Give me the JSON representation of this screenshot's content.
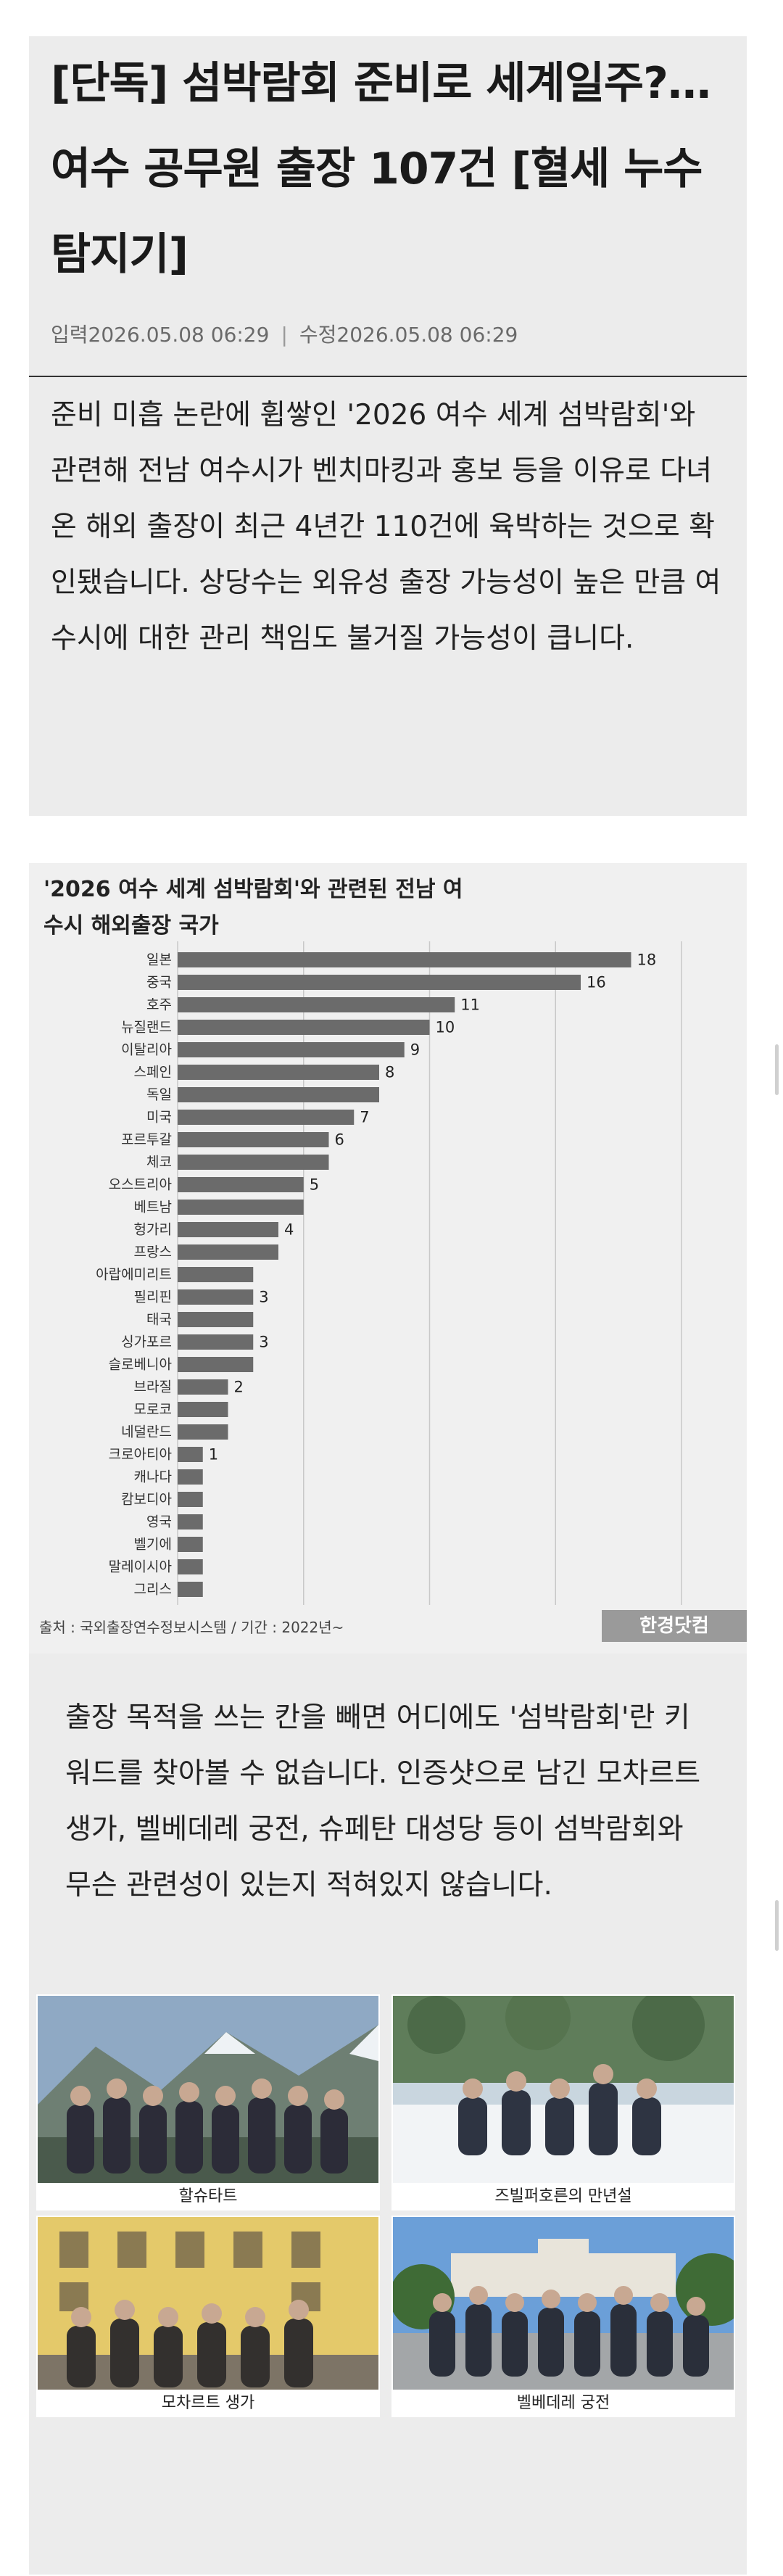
{
  "article": {
    "title": "[단독] 섬박람회 준비로 세계일주?…여수 공무원 출장 107건 [혈세 누수 탐지기]",
    "input_label": "입력",
    "input_time": "2026.05.08 06:29",
    "edit_label": "수정",
    "edit_time": "2026.05.08 06:29",
    "lead": "준비 미흡 논란에 휩쌓인 '2026 여수 세계 섬박람회'와 관련해 전남 여수시가 벤치마킹과 홍보 등을 이유로 다녀온 해외 출장이 최근 4년간 110건에 육박하는 것으로 확인됐습니다. 상당수는 외유성 출장 가능성이 높은 만큼 여수시에 대한 관리 책임도 불거질 가능성이 큽니다.",
    "body": "출장 목적을 쓰는 칸을 빼면 어디에도 '섬박람회'란 키워드를 찾아볼 수 없습니다. 인증샷으로 남긴 모차르트 생가, 벨베데레 궁전, 슈페탄 대성당 등이 섬박람회와 무슨 관련성이 있는지 적혀있지 않습니다."
  },
  "chart_data": {
    "type": "bar",
    "orientation": "horizontal",
    "title": "'2026 여수 세계 섬박람회'와 관련된 전남 여수시 해외출장 국가",
    "categories": [
      "일본",
      "중국",
      "호주",
      "뉴질랜드",
      "이탈리아",
      "스페인",
      "독일",
      "미국",
      "포르투갈",
      "체코",
      "오스트리아",
      "베트남",
      "헝가리",
      "프랑스",
      "아랍에미리트",
      "필리핀",
      "태국",
      "싱가포르",
      "슬로베니아",
      "브라질",
      "모로코",
      "네덜란드",
      "크로아티아",
      "캐나다",
      "캄보디아",
      "영국",
      "벨기에",
      "말레이시아",
      "그리스"
    ],
    "values": [
      18,
      16,
      11,
      10,
      9,
      8,
      8,
      7,
      6,
      6,
      5,
      5,
      4,
      4,
      3,
      3,
      3,
      3,
      3,
      2,
      2,
      2,
      1,
      1,
      1,
      1,
      1,
      1,
      1
    ],
    "value_labels": [
      "18",
      "16",
      "11",
      "10",
      "9",
      "8",
      "",
      "7",
      "6",
      "",
      "5",
      "",
      "4",
      "",
      "",
      "3",
      "",
      "3",
      "",
      "2",
      "",
      "",
      "1",
      "",
      "",
      "",
      "",
      "",
      ""
    ],
    "xlim": [
      0,
      20
    ],
    "source": "출처 : 국외출장연수정보시스템 / 기간 : 2022년~",
    "watermark": "한경닷컴",
    "colors": {
      "bar": "#6b6b6b",
      "grid": "#c8c8c8"
    }
  },
  "photos": [
    {
      "caption": "할슈타트",
      "scene": "mountain-lake"
    },
    {
      "caption": "즈빌퍼호른의 만년설",
      "scene": "snow"
    },
    {
      "caption": "모차르트 생가",
      "scene": "building-yellow"
    },
    {
      "caption": "벨베데레 궁전",
      "scene": "palace"
    }
  ]
}
